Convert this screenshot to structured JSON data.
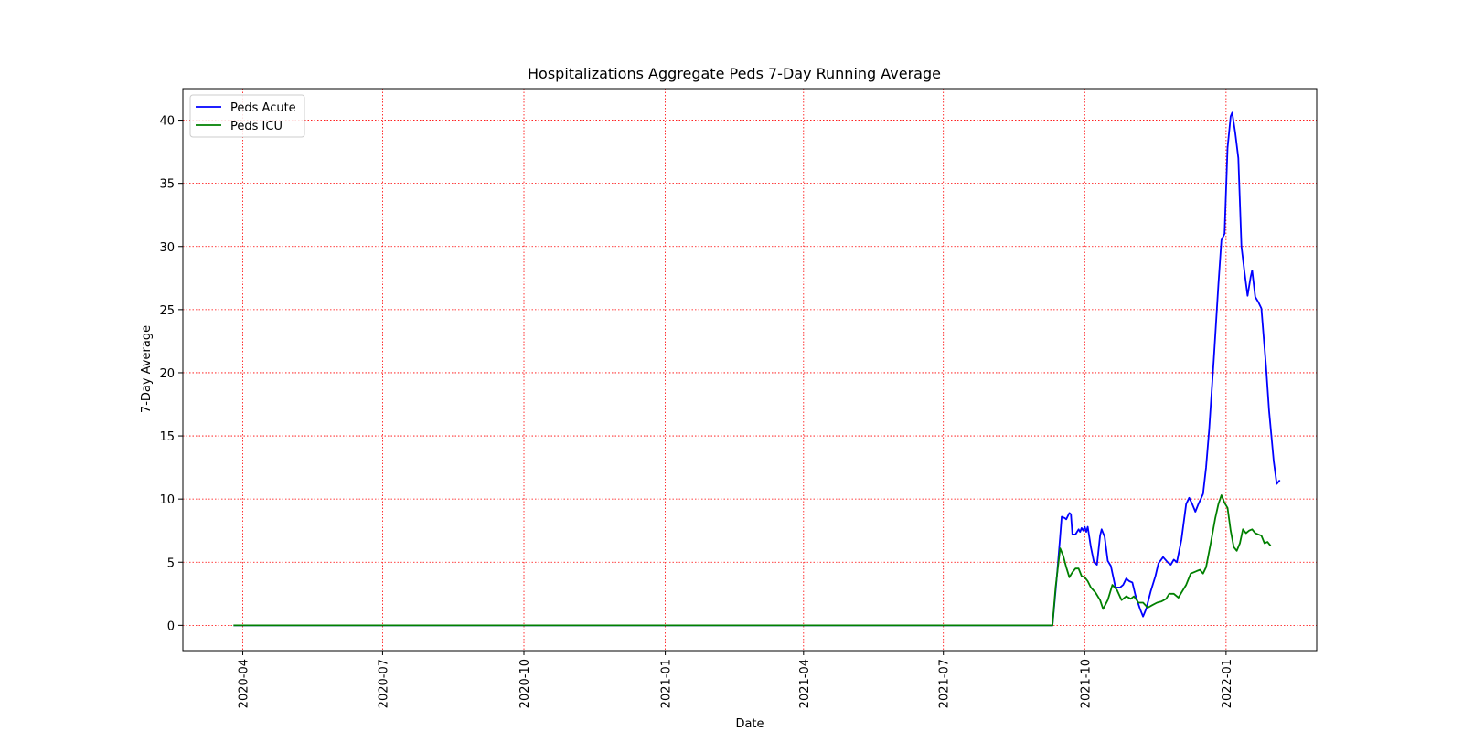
{
  "chart_data": {
    "type": "line",
    "title": "Hospitalizations Aggregate Peds 7-Day Running Average",
    "xlabel": "Date",
    "ylabel": "7-Day Average",
    "xlim": [
      "2020-02-22",
      "2022-03-01"
    ],
    "ylim": [
      -2,
      42.5
    ],
    "x_ticks": [
      "2020-04",
      "2020-07",
      "2020-10",
      "2021-01",
      "2021-04",
      "2021-07",
      "2021-10",
      "2022-01"
    ],
    "y_ticks": [
      0,
      5,
      10,
      15,
      20,
      25,
      30,
      35,
      40
    ],
    "grid": true,
    "grid_color": "#ff0000",
    "legend_position": "top-left",
    "series": [
      {
        "name": "Peds Acute",
        "color": "#0000ff",
        "points": [
          [
            "2020-03-26",
            0
          ],
          [
            "2021-09-10",
            0
          ],
          [
            "2021-09-13",
            4
          ],
          [
            "2021-09-15",
            7
          ],
          [
            "2021-09-16",
            8.6
          ],
          [
            "2021-09-18",
            8.5
          ],
          [
            "2021-09-19",
            8.4
          ],
          [
            "2021-09-21",
            8.9
          ],
          [
            "2021-09-22",
            8.8
          ],
          [
            "2021-09-23",
            7.2
          ],
          [
            "2021-09-25",
            7.2
          ],
          [
            "2021-09-27",
            7.6
          ],
          [
            "2021-09-28",
            7.4
          ],
          [
            "2021-09-29",
            7.7
          ],
          [
            "2021-09-30",
            7.5
          ],
          [
            "2021-10-01",
            7.8
          ],
          [
            "2021-10-02",
            7.4
          ],
          [
            "2021-10-03",
            7.8
          ],
          [
            "2021-10-05",
            6.2
          ],
          [
            "2021-10-07",
            5.0
          ],
          [
            "2021-10-09",
            4.8
          ],
          [
            "2021-10-11",
            7.1
          ],
          [
            "2021-10-12",
            7.6
          ],
          [
            "2021-10-14",
            7.0
          ],
          [
            "2021-10-16",
            5.1
          ],
          [
            "2021-10-18",
            4.7
          ],
          [
            "2021-10-21",
            3.0
          ],
          [
            "2021-10-24",
            3.0
          ],
          [
            "2021-10-26",
            3.2
          ],
          [
            "2021-10-28",
            3.7
          ],
          [
            "2021-10-30",
            3.5
          ],
          [
            "2021-11-01",
            3.4
          ],
          [
            "2021-11-03",
            2.4
          ],
          [
            "2021-11-06",
            1.3
          ],
          [
            "2021-11-08",
            0.7
          ],
          [
            "2021-11-10",
            1.3
          ],
          [
            "2021-11-13",
            2.7
          ],
          [
            "2021-11-16",
            3.9
          ],
          [
            "2021-11-18",
            4.9
          ],
          [
            "2021-11-21",
            5.4
          ],
          [
            "2021-11-24",
            5.0
          ],
          [
            "2021-11-26",
            4.8
          ],
          [
            "2021-11-28",
            5.2
          ],
          [
            "2021-11-30",
            5.0
          ],
          [
            "2021-12-03",
            6.8
          ],
          [
            "2021-12-06",
            9.6
          ],
          [
            "2021-12-08",
            10.1
          ],
          [
            "2021-12-10",
            9.6
          ],
          [
            "2021-12-12",
            9.0
          ],
          [
            "2021-12-14",
            9.6
          ],
          [
            "2021-12-17",
            10.4
          ],
          [
            "2021-12-19",
            12.5
          ],
          [
            "2021-12-21",
            15.5
          ],
          [
            "2021-12-24",
            21
          ],
          [
            "2021-12-27",
            27
          ],
          [
            "2021-12-29",
            30.5
          ],
          [
            "2021-12-31",
            31
          ],
          [
            "2022-01-02",
            37.8
          ],
          [
            "2022-01-04",
            40.3
          ],
          [
            "2022-01-05",
            40.6
          ],
          [
            "2022-01-07",
            39
          ],
          [
            "2022-01-09",
            37
          ],
          [
            "2022-01-11",
            30
          ],
          [
            "2022-01-13",
            28
          ],
          [
            "2022-01-15",
            26.1
          ],
          [
            "2022-01-17",
            27.6
          ],
          [
            "2022-01-18",
            28.1
          ],
          [
            "2022-01-20",
            26
          ],
          [
            "2022-01-22",
            25.6
          ],
          [
            "2022-01-24",
            25.1
          ],
          [
            "2022-01-27",
            20.5
          ],
          [
            "2022-01-29",
            17
          ],
          [
            "2022-02-01",
            13
          ],
          [
            "2022-02-03",
            11.2
          ],
          [
            "2022-02-05",
            11.5
          ]
        ]
      },
      {
        "name": "Peds ICU",
        "color": "#008000",
        "points": [
          [
            "2020-03-26",
            0
          ],
          [
            "2021-09-10",
            0
          ],
          [
            "2021-09-12",
            3
          ],
          [
            "2021-09-15",
            6.1
          ],
          [
            "2021-09-17",
            5.5
          ],
          [
            "2021-09-19",
            4.6
          ],
          [
            "2021-09-21",
            3.8
          ],
          [
            "2021-09-23",
            4.2
          ],
          [
            "2021-09-25",
            4.5
          ],
          [
            "2021-09-27",
            4.5
          ],
          [
            "2021-09-29",
            3.9
          ],
          [
            "2021-10-01",
            3.8
          ],
          [
            "2021-10-03",
            3.5
          ],
          [
            "2021-10-05",
            3.0
          ],
          [
            "2021-10-08",
            2.6
          ],
          [
            "2021-10-11",
            2.0
          ],
          [
            "2021-10-13",
            1.3
          ],
          [
            "2021-10-16",
            2.0
          ],
          [
            "2021-10-19",
            3.2
          ],
          [
            "2021-10-22",
            2.8
          ],
          [
            "2021-10-25",
            2.0
          ],
          [
            "2021-10-28",
            2.3
          ],
          [
            "2021-10-31",
            2.1
          ],
          [
            "2021-11-02",
            2.3
          ],
          [
            "2021-11-05",
            1.8
          ],
          [
            "2021-11-08",
            1.8
          ],
          [
            "2021-11-11",
            1.4
          ],
          [
            "2021-11-14",
            1.6
          ],
          [
            "2021-11-17",
            1.8
          ],
          [
            "2021-11-20",
            1.9
          ],
          [
            "2021-11-23",
            2.1
          ],
          [
            "2021-11-25",
            2.5
          ],
          [
            "2021-11-28",
            2.5
          ],
          [
            "2021-12-01",
            2.2
          ],
          [
            "2021-12-03",
            2.6
          ],
          [
            "2021-12-06",
            3.2
          ],
          [
            "2021-12-09",
            4.1
          ],
          [
            "2021-12-11",
            4.2
          ],
          [
            "2021-12-13",
            4.3
          ],
          [
            "2021-12-15",
            4.4
          ],
          [
            "2021-12-17",
            4.1
          ],
          [
            "2021-12-19",
            4.6
          ],
          [
            "2021-12-22",
            6.5
          ],
          [
            "2021-12-25",
            8.5
          ],
          [
            "2021-12-27",
            9.6
          ],
          [
            "2021-12-29",
            10.3
          ],
          [
            "2021-12-31",
            9.7
          ],
          [
            "2022-01-02",
            9.3
          ],
          [
            "2022-01-04",
            7.5
          ],
          [
            "2022-01-06",
            6.2
          ],
          [
            "2022-01-08",
            5.9
          ],
          [
            "2022-01-10",
            6.5
          ],
          [
            "2022-01-12",
            7.6
          ],
          [
            "2022-01-14",
            7.3
          ],
          [
            "2022-01-16",
            7.5
          ],
          [
            "2022-01-18",
            7.6
          ],
          [
            "2022-01-20",
            7.3
          ],
          [
            "2022-01-22",
            7.2
          ],
          [
            "2022-01-24",
            7.1
          ],
          [
            "2022-01-26",
            6.5
          ],
          [
            "2022-01-28",
            6.6
          ],
          [
            "2022-01-30",
            6.3
          ]
        ]
      }
    ]
  }
}
